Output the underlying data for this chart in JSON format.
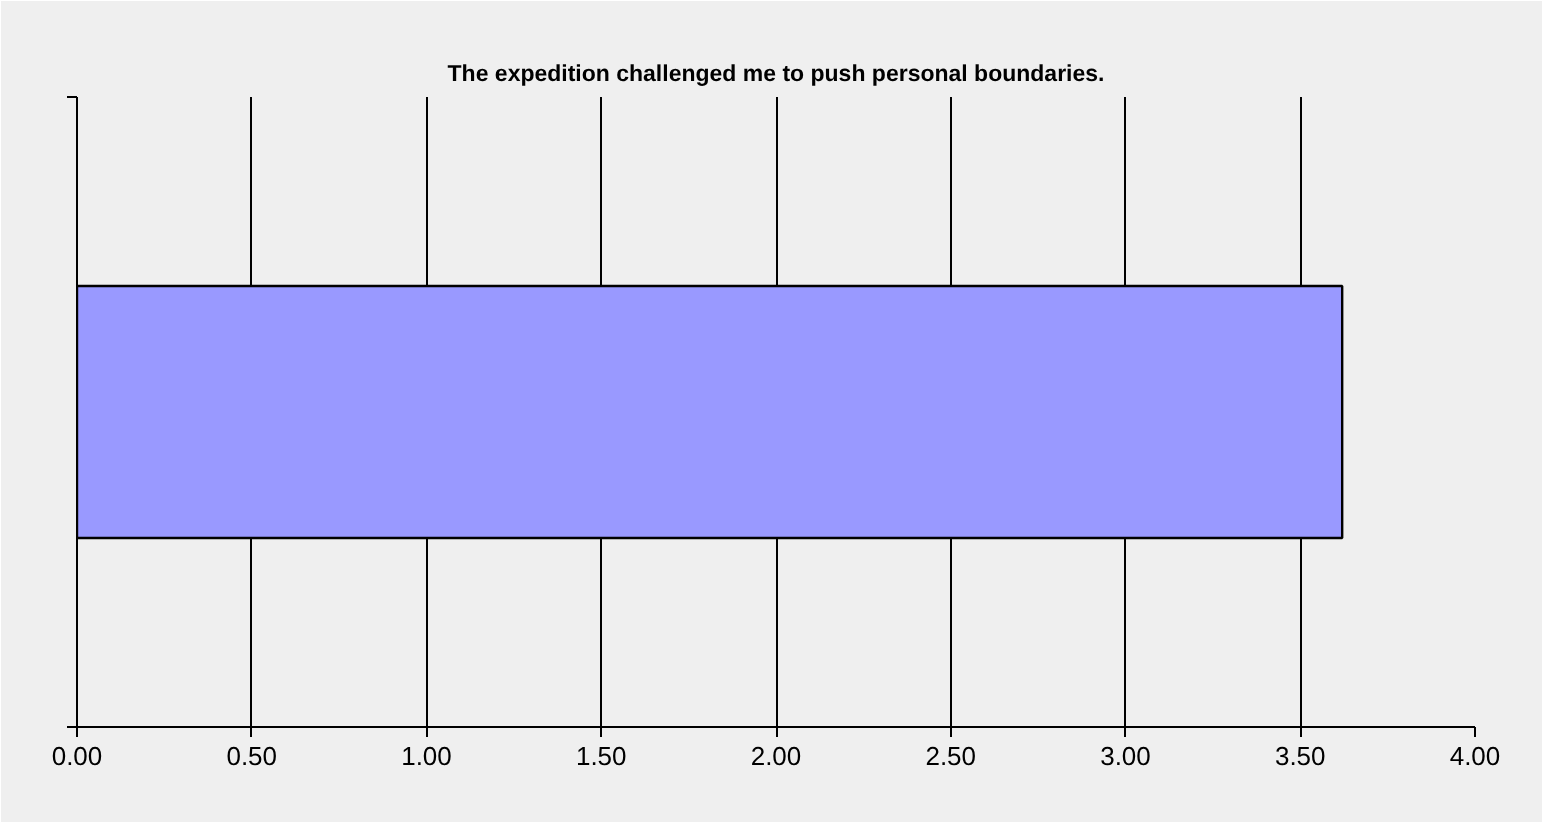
{
  "chart_data": {
    "type": "bar",
    "orientation": "horizontal",
    "title": "The expedition challenged me to push personal boundaries.",
    "categories": [
      null
    ],
    "series": [
      {
        "color": "#9999ff",
        "values": [
          3.62
        ]
      }
    ],
    "xlim": [
      0,
      4
    ],
    "xticks": [
      {
        "value": 0,
        "label": "0.00"
      },
      {
        "value": 0.5,
        "label": "0.50"
      },
      {
        "value": 1,
        "label": "1.00"
      },
      {
        "value": 1.5,
        "label": "1.50"
      },
      {
        "value": 2,
        "label": "2.00"
      },
      {
        "value": 2.5,
        "label": "2.50"
      },
      {
        "value": 3,
        "label": "3.00"
      },
      {
        "value": 3.5,
        "label": "3.50"
      },
      {
        "value": 4,
        "label": "4.00"
      }
    ],
    "grid": "x"
  }
}
